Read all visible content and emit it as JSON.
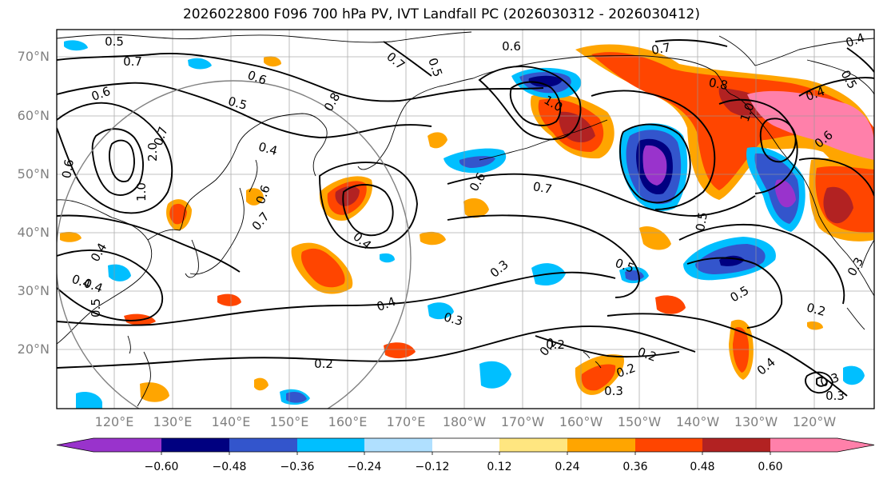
{
  "title": "2026022800 F096 700 hPa PV, IVT Landfall PC (2026030312 - 2026030412)",
  "latitude_labels": [
    "70°N",
    "60°N",
    "50°N",
    "40°N",
    "30°N",
    "20°N"
  ],
  "longitude_labels": [
    "120°E",
    "130°E",
    "140°E",
    "150°E",
    "160°E",
    "170°E",
    "180°W",
    "170°W",
    "160°W",
    "150°W",
    "140°W",
    "130°W",
    "120°W"
  ],
  "contour_labels": [
    "0.5",
    "0.7",
    "0.6",
    "0.6",
    "0.5",
    "0.4",
    "0.8",
    "0.7",
    "0.5",
    "0.6",
    "0.7",
    "0.8",
    "1.0",
    "1.0",
    "0.6",
    "1.0",
    "2.0",
    "0.7",
    "0.6",
    "0.6",
    "0.7",
    "0.4",
    "0.4",
    "0.3",
    "0.5",
    "0.5",
    "0.5",
    "0.3",
    "0.4",
    "0.2",
    "0.3",
    "0.2",
    "0.2",
    "0.3",
    "0.2",
    "0.4",
    "0.3",
    "0.6",
    "0.7",
    "0.4",
    "0.5",
    "0.4",
    "0.4",
    "0.5",
    "0.2",
    "0.2",
    "0.3",
    "0.4"
  ],
  "colorbar": {
    "tick_labels": [
      "−0.60",
      "−0.48",
      "−0.36",
      "−0.24",
      "−0.12",
      "0.12",
      "0.24",
      "0.36",
      "0.48",
      "0.60"
    ],
    "colors": [
      "#9933cc",
      "#000080",
      "#3355cc",
      "#00bfff",
      "#b0e0ff",
      "#ffffff",
      "#ffe680",
      "#ffa500",
      "#ff4500",
      "#b22222",
      "#ff80aa"
    ]
  }
}
